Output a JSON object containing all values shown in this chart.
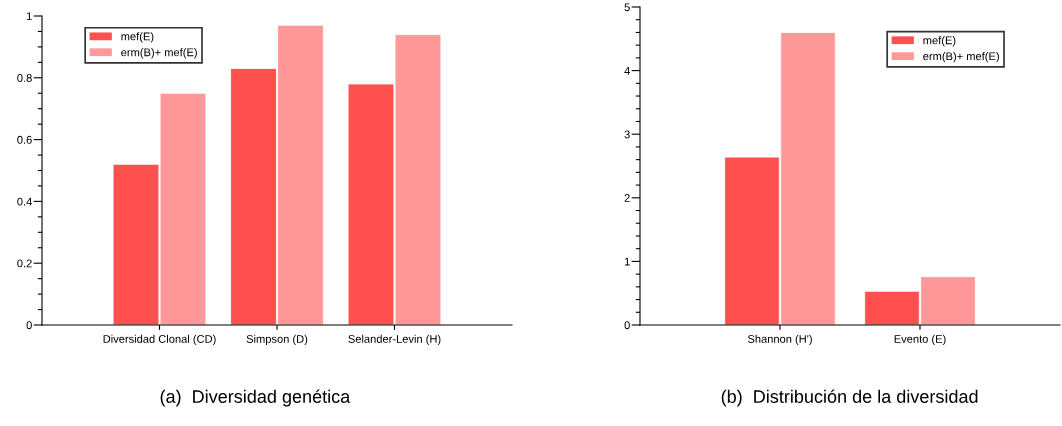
{
  "chart_data": [
    {
      "type": "bar",
      "title": "(a)  Diversidad genética",
      "categories": [
        "Diversidad Clonal (CD)",
        "Simpson (D)",
        "Selander-Levin (H)"
      ],
      "series": [
        {
          "name": "mef(E)",
          "color": "#ff5050",
          "values": [
            0.52,
            0.83,
            0.78
          ]
        },
        {
          "name": "erm(B)+ mef(E)",
          "color": "#ff9999",
          "values": [
            0.75,
            0.97,
            0.94
          ]
        }
      ],
      "ylim": [
        0,
        1
      ],
      "yticks": [
        0,
        {
          "value": 0.05,
          "label": null
        },
        {
          "value": 0.1,
          "label": null
        },
        {
          "value": 0.15,
          "label": null
        },
        0.2,
        {
          "value": 0.25,
          "label": null
        },
        {
          "value": 0.3,
          "label": null
        },
        {
          "value": 0.35,
          "label": null
        },
        0.4,
        {
          "value": 0.45,
          "label": null
        },
        {
          "value": 0.5,
          "label": null
        },
        {
          "value": 0.55,
          "label": null
        },
        0.6,
        {
          "value": 0.65,
          "label": null
        },
        {
          "value": 0.7,
          "label": null
        },
        {
          "value": 0.75,
          "label": null
        },
        0.8,
        {
          "value": 0.85,
          "label": null
        },
        {
          "value": 0.9,
          "label": null
        },
        {
          "value": 0.95,
          "label": null
        },
        1
      ],
      "grid": false,
      "legend": "top left"
    },
    {
      "type": "bar",
      "title": "(b)  Distribución de la diversidad",
      "categories": [
        "Shannon (H')",
        "Evento (E)"
      ],
      "series": [
        {
          "name": "mef(E)",
          "color": "#ff5050",
          "values": [
            2.64,
            0.53
          ]
        },
        {
          "name": "erm(B)+ mef(E)",
          "color": "#ff9999",
          "values": [
            4.6,
            0.76
          ]
        }
      ],
      "ylim": [
        0,
        5
      ],
      "yticks": [
        0,
        {
          "value": 0.2,
          "label": null
        },
        {
          "value": 0.4,
          "label": null
        },
        {
          "value": 0.6,
          "label": null
        },
        {
          "value": 0.8,
          "label": null
        },
        1,
        {
          "value": 1.2,
          "label": null
        },
        {
          "value": 1.4,
          "label": null
        },
        {
          "value": 1.6,
          "label": null
        },
        {
          "value": 1.8,
          "label": null
        },
        2,
        {
          "value": 2.2,
          "label": null
        },
        {
          "value": 2.4,
          "label": null
        },
        {
          "value": 2.6,
          "label": null
        },
        {
          "value": 2.8,
          "label": null
        },
        3,
        {
          "value": 3.2,
          "label": null
        },
        {
          "value": 3.4,
          "label": null
        },
        {
          "value": 3.6,
          "label": null
        },
        {
          "value": 3.8,
          "label": null
        },
        4,
        {
          "value": 4.2,
          "label": null
        },
        {
          "value": 4.4,
          "label": null
        },
        {
          "value": 4.6,
          "label": null
        },
        {
          "value": 4.8,
          "label": null
        },
        5
      ],
      "grid": false,
      "legend": "top right"
    }
  ]
}
